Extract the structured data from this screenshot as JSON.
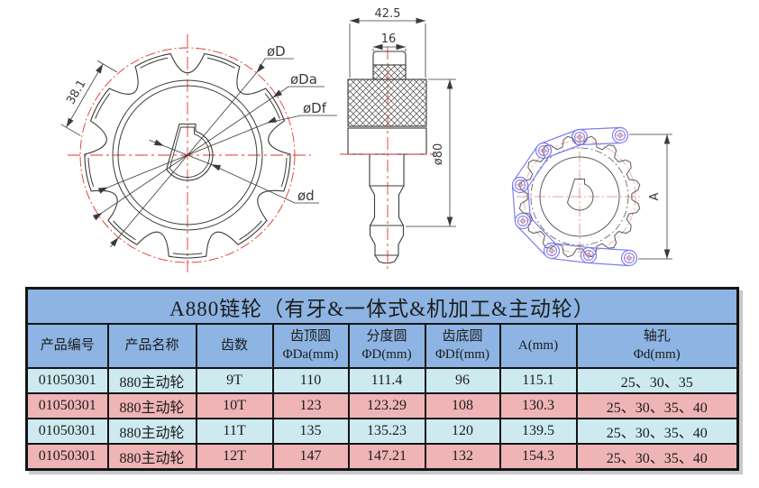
{
  "drawings": {
    "front_view": {
      "dim_pitch": "38.1",
      "dia_pitch_label": "øD",
      "dia_tip_label": "øDa",
      "dia_root_label": "øDf",
      "dia_bore_label": "ød"
    },
    "side_view": {
      "dim_overall_width": "42.5",
      "dim_hub_width": "16",
      "dim_outer_dia": "ø80"
    },
    "chain_view": {
      "dim_span": "A"
    }
  },
  "table": {
    "title": "A880链轮（有牙&一体式&机加工&主动轮）",
    "headers": [
      {
        "line1": "产品编号",
        "line2": ""
      },
      {
        "line1": "产品名称",
        "line2": ""
      },
      {
        "line1": "齿数",
        "line2": ""
      },
      {
        "line1": "齿顶圆",
        "line2": "ΦDa(mm)"
      },
      {
        "line1": "分度圆",
        "line2": "ΦD(mm)"
      },
      {
        "line1": "齿底圆",
        "line2": "ΦDf(mm)"
      },
      {
        "line1": "A(mm)",
        "line2": ""
      },
      {
        "line1": "轴孔",
        "line2": "Φd(mm)"
      }
    ],
    "rows": [
      [
        "01050301",
        "880主动轮",
        "9T",
        "110",
        "111.4",
        "96",
        "115.1",
        "25、30、35"
      ],
      [
        "01050301",
        "880主动轮",
        "10T",
        "123",
        "123.29",
        "108",
        "130.3",
        "25、30、35、40"
      ],
      [
        "01050301",
        "880主动轮",
        "11T",
        "135",
        "135.23",
        "120",
        "139.5",
        "25、30、35、40"
      ],
      [
        "01050301",
        "880主动轮",
        "12T",
        "147",
        "147.21",
        "132",
        "154.3",
        "25、30、35、40"
      ]
    ]
  },
  "chart_data": {
    "type": "table",
    "title": "A880链轮（有牙&一体式&机加工&主动轮）",
    "columns": [
      "产品编号",
      "产品名称",
      "齿数",
      "齿顶圆 ΦDa(mm)",
      "分度圆 ΦD(mm)",
      "齿底圆 ΦDf(mm)",
      "A(mm)",
      "轴孔 Φd(mm)"
    ],
    "rows": [
      [
        "01050301",
        "880主动轮",
        "9T",
        110,
        111.4,
        96,
        115.1,
        "25、30、35"
      ],
      [
        "01050301",
        "880主动轮",
        "10T",
        123,
        123.29,
        108,
        130.3,
        "25、30、35、40"
      ],
      [
        "01050301",
        "880主动轮",
        "11T",
        135,
        135.23,
        120,
        139.5,
        "25、30、35、40"
      ],
      [
        "01050301",
        "880主动轮",
        "12T",
        147,
        147.21,
        132,
        154.3,
        "25、30、35、40"
      ]
    ]
  },
  "colors": {
    "table_header_bg": "#8db4e2",
    "row_alt_cyan": "#cdeaf0",
    "row_alt_pink": "#efb4b6",
    "centerline_red": "#e0372b",
    "pale_pitch_red": "#f0a0a0",
    "chain_blue": "#7d7df0",
    "line_black": "#3a3a3a"
  }
}
